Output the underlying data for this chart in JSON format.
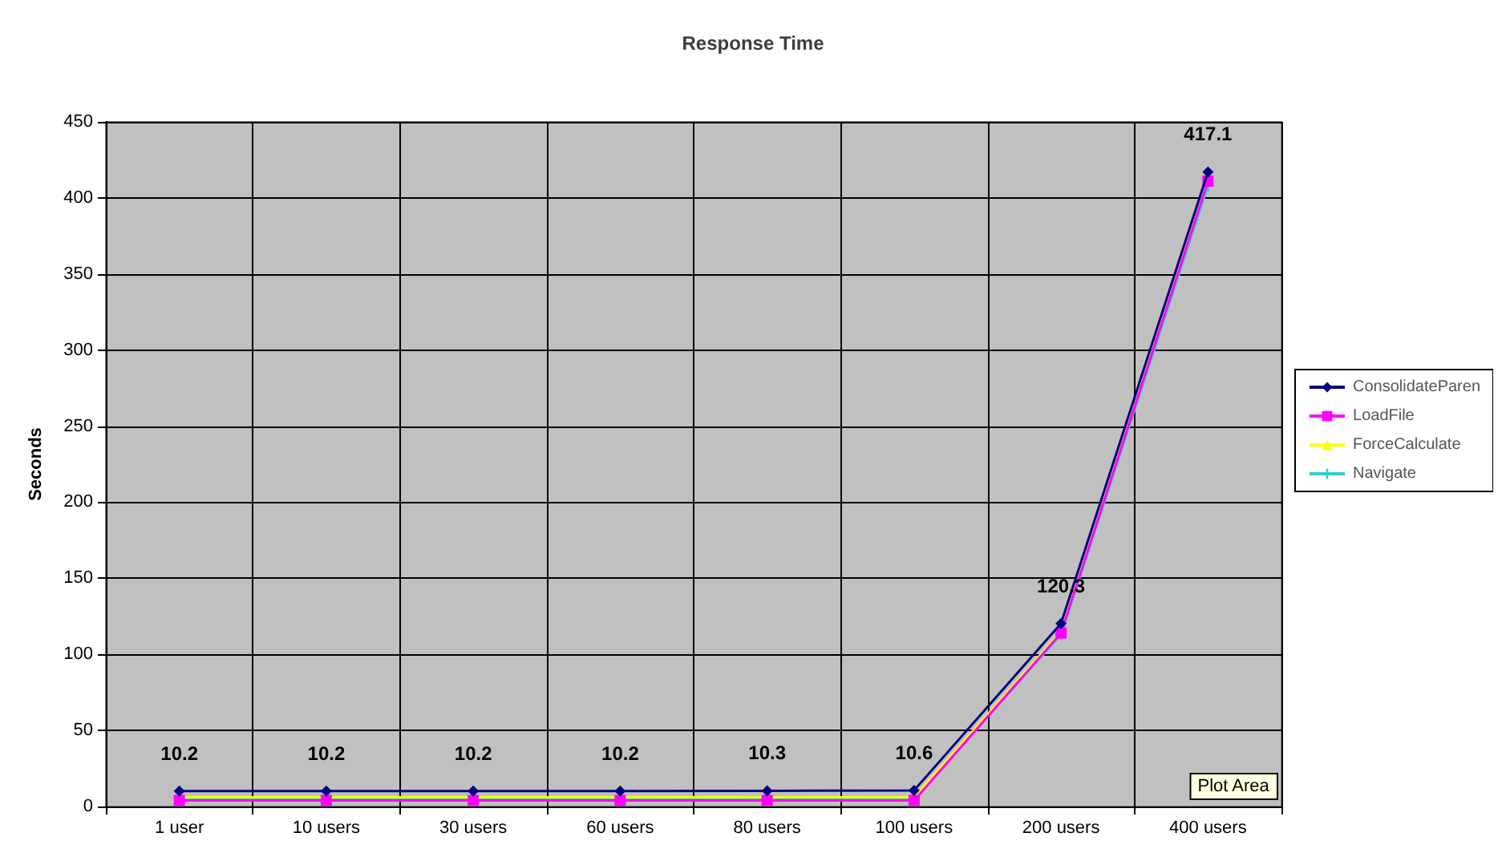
{
  "chart_data": {
    "type": "line",
    "title": "Response Time",
    "ylabel": "Seconds",
    "categories": [
      "1 user",
      "10 users",
      "30 users",
      "60 users",
      "80 users",
      "100 users",
      "200 users",
      "400 users"
    ],
    "series": [
      {
        "name": "ConsolidateParen",
        "color": "#000080",
        "marker": "diamond",
        "values": [
          10.2,
          10.2,
          10.2,
          10.2,
          10.3,
          10.6,
          120.3,
          417.1
        ],
        "value_labels": [
          "10.2",
          "10.2",
          "10.2",
          "10.2",
          "10.3",
          "10.6",
          "120.3",
          "417.1"
        ]
      },
      {
        "name": "LoadFile",
        "color": "#ff00ff",
        "marker": "square",
        "values": [
          4,
          4,
          4,
          4,
          4,
          4,
          114,
          411
        ]
      },
      {
        "name": "ForceCalculate",
        "color": "#ffff00",
        "marker": "triangle",
        "values": [
          6,
          6,
          6,
          6,
          6,
          6,
          115,
          412
        ]
      },
      {
        "name": "Navigate",
        "color": "#33cccc",
        "marker": "cross",
        "values": [
          5,
          5,
          5,
          5,
          5,
          5,
          113,
          408
        ]
      }
    ],
    "ylim": [
      0,
      450
    ],
    "yticks": [
      0,
      50,
      100,
      150,
      200,
      250,
      300,
      350,
      400,
      450
    ],
    "grid": true,
    "legend": "right",
    "annotations": [
      "Plot Area"
    ]
  }
}
